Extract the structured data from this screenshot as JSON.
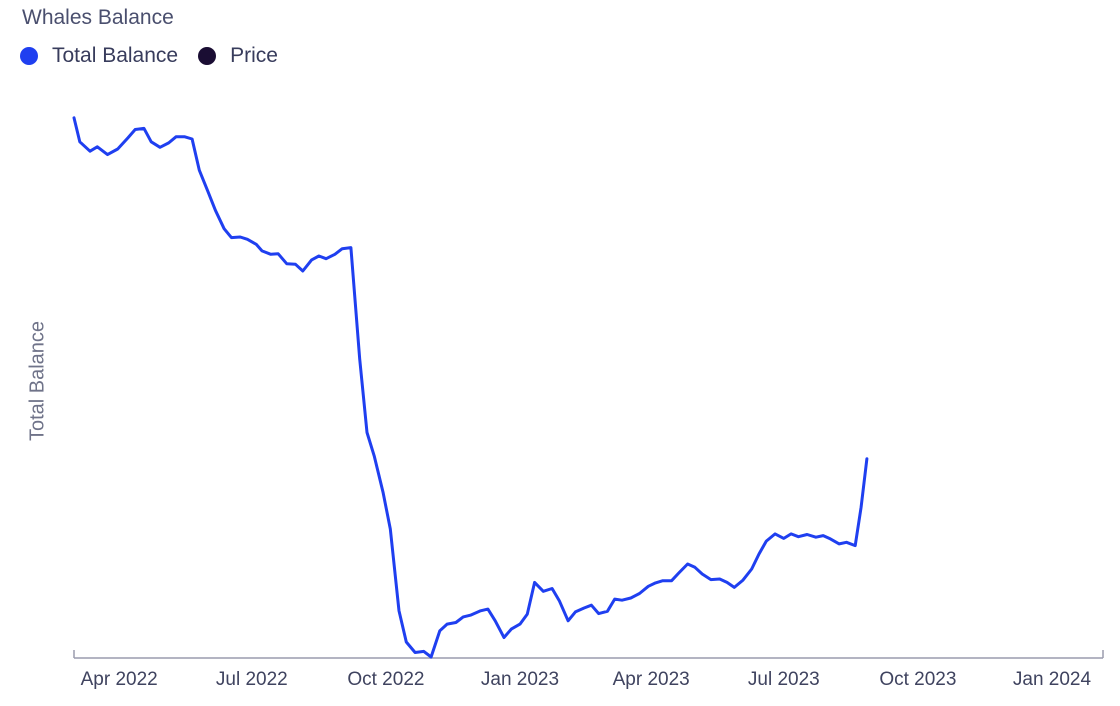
{
  "title": "Whales Balance",
  "legend": [
    {
      "name": "Total Balance",
      "color": "#1f3ff0"
    },
    {
      "name": "Price",
      "color": "#1a0d33"
    }
  ],
  "chart_data": {
    "type": "line",
    "title": "Whales Balance",
    "xlabel": "",
    "ylabel": "Total Balance",
    "x_range": [
      "2022-03-01",
      "2024-02-05"
    ],
    "x_ticks": [
      {
        "date": "2022-04-01",
        "label": "Apr 2022"
      },
      {
        "date": "2022-07-01",
        "label": "Jul 2022"
      },
      {
        "date": "2022-10-01",
        "label": "Oct 2022"
      },
      {
        "date": "2023-01-01",
        "label": "Jan 2023"
      },
      {
        "date": "2023-04-01",
        "label": "Apr 2023"
      },
      {
        "date": "2023-07-01",
        "label": "Jul 2023"
      },
      {
        "date": "2023-10-01",
        "label": "Oct 2023"
      },
      {
        "date": "2024-01-01",
        "label": "Jan 2024"
      }
    ],
    "grid": false,
    "legend_position": "top-left",
    "series": [
      {
        "name": "Total Balance",
        "color": "#1f3ff0",
        "scale": "Total Balance (0-100 relative)",
        "points": [
          [
            "2022-03-01",
            0.968
          ],
          [
            "2022-03-05",
            0.925
          ],
          [
            "2022-03-12",
            0.908
          ],
          [
            "2022-03-17",
            0.916
          ],
          [
            "2022-03-24",
            0.902
          ],
          [
            "2022-03-31",
            0.912
          ],
          [
            "2022-04-07",
            0.932
          ],
          [
            "2022-04-12",
            0.947
          ],
          [
            "2022-04-18",
            0.949
          ],
          [
            "2022-04-23",
            0.925
          ],
          [
            "2022-04-29",
            0.915
          ],
          [
            "2022-05-05",
            0.923
          ],
          [
            "2022-05-10",
            0.934
          ],
          [
            "2022-05-16",
            0.934
          ],
          [
            "2022-05-21",
            0.93
          ],
          [
            "2022-05-26",
            0.874
          ],
          [
            "2022-06-01",
            0.835
          ],
          [
            "2022-06-06",
            0.802
          ],
          [
            "2022-06-12",
            0.769
          ],
          [
            "2022-06-17",
            0.753
          ],
          [
            "2022-06-23",
            0.754
          ],
          [
            "2022-06-28",
            0.75
          ],
          [
            "2022-07-04",
            0.741
          ],
          [
            "2022-07-08",
            0.729
          ],
          [
            "2022-07-14",
            0.723
          ],
          [
            "2022-07-19",
            0.724
          ],
          [
            "2022-07-25",
            0.706
          ],
          [
            "2022-07-31",
            0.705
          ],
          [
            "2022-08-05",
            0.693
          ],
          [
            "2022-08-11",
            0.713
          ],
          [
            "2022-08-16",
            0.72
          ],
          [
            "2022-08-21",
            0.715
          ],
          [
            "2022-08-27",
            0.723
          ],
          [
            "2022-09-01",
            0.733
          ],
          [
            "2022-09-07",
            0.735
          ],
          [
            "2022-09-13",
            0.535
          ],
          [
            "2022-09-18",
            0.403
          ],
          [
            "2022-09-23",
            0.361
          ],
          [
            "2022-09-29",
            0.296
          ],
          [
            "2022-10-04",
            0.23
          ],
          [
            "2022-10-10",
            0.083
          ],
          [
            "2022-10-15",
            0.027
          ],
          [
            "2022-10-21",
            0.008
          ],
          [
            "2022-10-27",
            0.01
          ],
          [
            "2022-11-01",
            0.0
          ],
          [
            "2022-11-07",
            0.047
          ],
          [
            "2022-11-12",
            0.059
          ],
          [
            "2022-11-18",
            0.062
          ],
          [
            "2022-11-23",
            0.072
          ],
          [
            "2022-11-28",
            0.075
          ],
          [
            "2022-12-05",
            0.083
          ],
          [
            "2022-12-10",
            0.086
          ],
          [
            "2022-12-15",
            0.065
          ],
          [
            "2022-12-21",
            0.035
          ],
          [
            "2022-12-26",
            0.05
          ],
          [
            "2023-01-01",
            0.059
          ],
          [
            "2023-01-06",
            0.077
          ],
          [
            "2023-01-11",
            0.134
          ],
          [
            "2023-01-17",
            0.118
          ],
          [
            "2023-01-23",
            0.123
          ],
          [
            "2023-01-28",
            0.101
          ],
          [
            "2023-02-03",
            0.065
          ],
          [
            "2023-02-08",
            0.081
          ],
          [
            "2023-02-14",
            0.088
          ],
          [
            "2023-02-19",
            0.093
          ],
          [
            "2023-02-24",
            0.078
          ],
          [
            "2023-03-02",
            0.082
          ],
          [
            "2023-03-07",
            0.104
          ],
          [
            "2023-03-12",
            0.102
          ],
          [
            "2023-03-18",
            0.106
          ],
          [
            "2023-03-24",
            0.114
          ],
          [
            "2023-03-30",
            0.127
          ],
          [
            "2023-04-04",
            0.133
          ],
          [
            "2023-04-09",
            0.137
          ],
          [
            "2023-04-15",
            0.137
          ],
          [
            "2023-04-20",
            0.151
          ],
          [
            "2023-04-26",
            0.167
          ],
          [
            "2023-05-01",
            0.161
          ],
          [
            "2023-05-06",
            0.149
          ],
          [
            "2023-05-12",
            0.139
          ],
          [
            "2023-05-18",
            0.14
          ],
          [
            "2023-05-23",
            0.134
          ],
          [
            "2023-05-28",
            0.125
          ],
          [
            "2023-06-03",
            0.138
          ],
          [
            "2023-06-09",
            0.158
          ],
          [
            "2023-06-14",
            0.185
          ],
          [
            "2023-06-19",
            0.208
          ],
          [
            "2023-06-25",
            0.221
          ],
          [
            "2023-07-01",
            0.213
          ],
          [
            "2023-07-06",
            0.221
          ],
          [
            "2023-07-11",
            0.216
          ],
          [
            "2023-07-17",
            0.22
          ],
          [
            "2023-07-23",
            0.215
          ],
          [
            "2023-07-28",
            0.218
          ],
          [
            "2023-08-02",
            0.212
          ],
          [
            "2023-08-08",
            0.203
          ],
          [
            "2023-08-13",
            0.206
          ],
          [
            "2023-08-19",
            0.2
          ],
          [
            "2023-08-23",
            0.269
          ],
          [
            "2023-08-27",
            0.356
          ]
        ]
      }
    ]
  }
}
